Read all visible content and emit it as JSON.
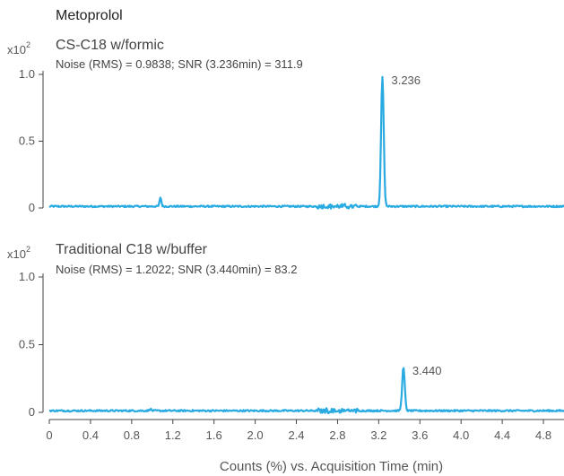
{
  "chart_data": {
    "type": "line",
    "title": "Metoprolol",
    "xlabel": "Counts (%) vs. Acquisition Time (min)",
    "xlim": [
      0,
      5.0
    ],
    "xticks": [
      "0",
      "0.4",
      "0.8",
      "1.2",
      "1.6",
      "2.0",
      "2.4",
      "2.8",
      "3.2",
      "3.6",
      "4.0",
      "4.4",
      "4.8"
    ],
    "line_color": "#29abe2",
    "panels": [
      {
        "y_multiplier_base": "x10",
        "y_multiplier_exp": "2",
        "title": "CS-C18 w/formic",
        "subtitle": "Noise (RMS) = 0.9838; SNR (3.236min) = 311.9",
        "ylim": [
          0,
          1.0
        ],
        "yticks": [
          "0",
          "0.5",
          "1.0"
        ],
        "peaks": [
          {
            "x": 3.236,
            "y": 0.98,
            "label": "3.236"
          },
          {
            "x": 1.08,
            "y": 0.08,
            "label": ""
          }
        ],
        "baseline": 0.012
      },
      {
        "y_multiplier_base": "x10",
        "y_multiplier_exp": "2",
        "title": "Traditional C18 w/buffer",
        "subtitle": "Noise (RMS) = 1.2022; SNR (3.440min) = 83.2",
        "ylim": [
          0,
          1.0
        ],
        "yticks": [
          "0",
          "0.5",
          "1.0"
        ],
        "peaks": [
          {
            "x": 3.44,
            "y": 0.33,
            "label": "3.440"
          },
          {
            "x": 0.98,
            "y": 0.025,
            "label": ""
          }
        ],
        "baseline": 0.012
      }
    ]
  }
}
